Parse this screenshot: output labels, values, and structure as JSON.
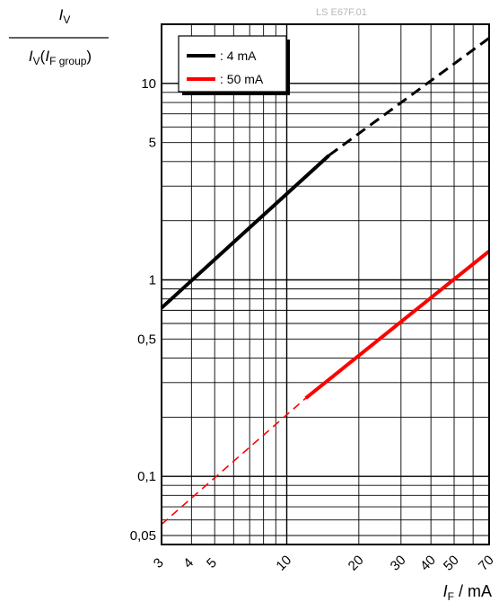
{
  "chart_data": {
    "type": "line",
    "watermark": "LS E67F.01",
    "ylabel": {
      "numerator_italic": "I",
      "numerator_sub": "V",
      "denominator_italic": "I",
      "denominator_sub": "V",
      "denominator_paren_open": "(",
      "denominator_arg_italic": "I",
      "denominator_arg_sub": "F group",
      "denominator_paren_close": ")"
    },
    "xlabel": {
      "italic": "I",
      "sub": "F",
      "unit": " / mA"
    },
    "x_scale": "log",
    "y_scale": "log",
    "xlim": [
      3,
      70
    ],
    "ylim": [
      0.045,
      20
    ],
    "grid": true,
    "legend_placement": "top-left",
    "x_ticks": [
      {
        "value": 3,
        "label": "3"
      },
      {
        "value": 4,
        "label": "4"
      },
      {
        "value": 5,
        "label": "5"
      },
      {
        "value": 10,
        "label": "10"
      },
      {
        "value": 20,
        "label": "20"
      },
      {
        "value": 30,
        "label": "30"
      },
      {
        "value": 40,
        "label": "40"
      },
      {
        "value": 50,
        "label": "50"
      },
      {
        "value": 70,
        "label": "70"
      }
    ],
    "y_ticks": [
      {
        "value": 0.05,
        "label": "0,05"
      },
      {
        "value": 0.1,
        "label": "0,1"
      },
      {
        "value": 0.5,
        "label": "0,5"
      },
      {
        "value": 1,
        "label": "1"
      },
      {
        "value": 5,
        "label": "5"
      },
      {
        "value": 10,
        "label": "10"
      }
    ],
    "series": [
      {
        "name": ": 4 mA",
        "color": "#000000",
        "segments": [
          {
            "style": "solid",
            "x": [
              3,
              15
            ],
            "y": [
              0.72,
              4.3
            ]
          },
          {
            "style": "dashed",
            "x": [
              15,
              70
            ],
            "y": [
              4.3,
              17
            ]
          }
        ]
      },
      {
        "name": ": 50 mA",
        "color": "#ff0000",
        "segments": [
          {
            "style": "dashed",
            "x": [
              3,
              12
            ],
            "y": [
              0.057,
              0.25
            ]
          },
          {
            "style": "solid",
            "x": [
              12,
              70
            ],
            "y": [
              0.25,
              1.4
            ]
          }
        ]
      }
    ]
  }
}
